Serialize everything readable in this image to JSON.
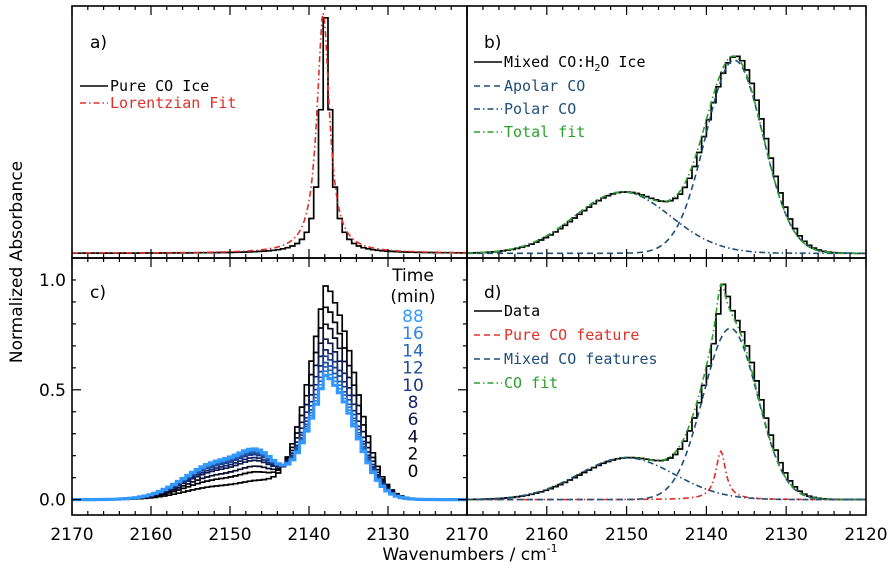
{
  "figure": {
    "ylabel": "Normalized Absorbance",
    "xlabel": "Wavenumbers / cm",
    "xlabel_sup": "-1"
  },
  "chart_data": [
    {
      "type": "line",
      "panel": "a)",
      "xlim": [
        2170,
        2120
      ],
      "ylim": [
        -0.02,
        1.05
      ],
      "x_ticks": [
        2170,
        2160,
        2150,
        2140,
        2130
      ],
      "y_ticks": [],
      "legend_position": "top-left",
      "series": [
        {
          "name": "Pure CO Ice",
          "color": "#000000",
          "style": "solid",
          "shape": [
            {
              "type": "lorentz",
              "center": 2138.2,
              "hwhm": 0.75,
              "amp": 1.0
            }
          ]
        },
        {
          "name": "Lorentzian Fit",
          "color": "#e0302a",
          "style": "dashdot",
          "shape": [
            {
              "type": "lorentz",
              "center": 2138.2,
              "hwhm": 0.95,
              "amp": 1.02
            }
          ]
        }
      ]
    },
    {
      "type": "line",
      "panel": "b)",
      "xlim": [
        2170,
        2120
      ],
      "ylim": [
        -0.02,
        1.05
      ],
      "x_ticks": [
        2160,
        2150,
        2140,
        2130
      ],
      "y_ticks": [],
      "legend_position": "top-left",
      "series": [
        {
          "name": "Mixed CO:H2O Ice",
          "color": "#000000",
          "style": "solid",
          "shape": [
            {
              "type": "gauss",
              "center": 2136.5,
              "sigma": 3.6,
              "amp": 0.82
            },
            {
              "type": "gauss",
              "center": 2150.5,
              "sigma": 6.0,
              "amp": 0.26
            }
          ]
        },
        {
          "name": "Apolar CO",
          "color": "#1f4e79",
          "style": "dash",
          "shape": [
            {
              "type": "gauss",
              "center": 2136.5,
              "sigma": 3.6,
              "amp": 0.82
            }
          ]
        },
        {
          "name": "Polar CO",
          "color": "#1f4e79",
          "style": "dashdot",
          "shape": [
            {
              "type": "gauss",
              "center": 2150.5,
              "sigma": 6.0,
              "amp": 0.26
            }
          ]
        },
        {
          "name": "Total fit",
          "color": "#2ca02c",
          "style": "dashdot",
          "shape": [
            {
              "type": "gauss",
              "center": 2136.5,
              "sigma": 3.6,
              "amp": 0.82
            },
            {
              "type": "gauss",
              "center": 2150.5,
              "sigma": 6.0,
              "amp": 0.26
            }
          ]
        }
      ]
    },
    {
      "type": "line",
      "panel": "c)",
      "xlim": [
        2170,
        2120
      ],
      "ylim": [
        -0.07,
        1.1
      ],
      "x_ticks": [
        2170,
        2160,
        2150,
        2140,
        2130
      ],
      "y_ticks": [
        0.0,
        0.5,
        1.0
      ],
      "legend_title": [
        "Time",
        "(min)"
      ],
      "legend_position": "top-right",
      "series": [
        {
          "name": "88",
          "color": "#3399ff",
          "peak": 0.58,
          "shoulder": 0.17
        },
        {
          "name": "16",
          "color": "#2f84e0",
          "peak": 0.6,
          "shoulder": 0.165
        },
        {
          "name": "14",
          "color": "#2563b8",
          "peak": 0.62,
          "shoulder": 0.16
        },
        {
          "name": "12",
          "color": "#1e4e95",
          "peak": 0.64,
          "shoulder": 0.155
        },
        {
          "name": "10",
          "color": "#1a3a8a",
          "peak": 0.67,
          "shoulder": 0.15
        },
        {
          "name": "8",
          "color": "#14246a",
          "peak": 0.7,
          "shoulder": 0.14
        },
        {
          "name": "6",
          "color": "#0e1a4e",
          "peak": 0.75,
          "shoulder": 0.13
        },
        {
          "name": "4",
          "color": "#060a26",
          "peak": 0.82,
          "shoulder": 0.11
        },
        {
          "name": "2",
          "color": "#000000",
          "peak": 0.9,
          "shoulder": 0.09
        },
        {
          "name": "0",
          "color": "#000000",
          "peak": 1.0,
          "shoulder": 0.06
        }
      ]
    },
    {
      "type": "line",
      "panel": "d)",
      "xlim": [
        2170,
        2120
      ],
      "ylim": [
        -0.07,
        1.1
      ],
      "x_ticks": [
        2170,
        2160,
        2150,
        2140,
        2130,
        2120
      ],
      "y_ticks": [],
      "legend_position": "top-left",
      "series": [
        {
          "name": "Data",
          "color": "#000000",
          "style": "solid",
          "shape": [
            {
              "type": "gauss",
              "center": 2137.0,
              "sigma": 3.4,
              "amp": 0.78
            },
            {
              "type": "gauss",
              "center": 2150.0,
              "sigma": 6.0,
              "amp": 0.19
            },
            {
              "type": "lorentz",
              "center": 2138.2,
              "hwhm": 0.75,
              "amp": 0.22
            }
          ]
        },
        {
          "name": "Pure CO feature",
          "color": "#e0302a",
          "style": "dashdot",
          "shape": [
            {
              "type": "lorentz",
              "center": 2138.2,
              "hwhm": 0.75,
              "amp": 0.22
            }
          ]
        },
        {
          "name": "Mixed CO features",
          "color": "#1f4e79",
          "style": "dash",
          "shape": [
            {
              "type": "gauss",
              "center": 2137.0,
              "sigma": 3.4,
              "amp": 0.78
            }
          ]
        },
        {
          "name": "CO fit",
          "color": "#2ca02c",
          "style": "dashdot",
          "shape": [
            {
              "type": "gauss",
              "center": 2137.0,
              "sigma": 3.4,
              "amp": 0.78
            },
            {
              "type": "gauss",
              "center": 2150.0,
              "sigma": 6.0,
              "amp": 0.19
            },
            {
              "type": "lorentz",
              "center": 2138.2,
              "hwhm": 0.75,
              "amp": 0.22
            }
          ]
        }
      ]
    }
  ],
  "extra_components": {
    "polar_in_d": {
      "color": "#1f4e79",
      "style": "dashdot",
      "shape": [
        {
          "type": "gauss",
          "center": 2150.0,
          "sigma": 6.0,
          "amp": 0.19
        }
      ]
    }
  }
}
